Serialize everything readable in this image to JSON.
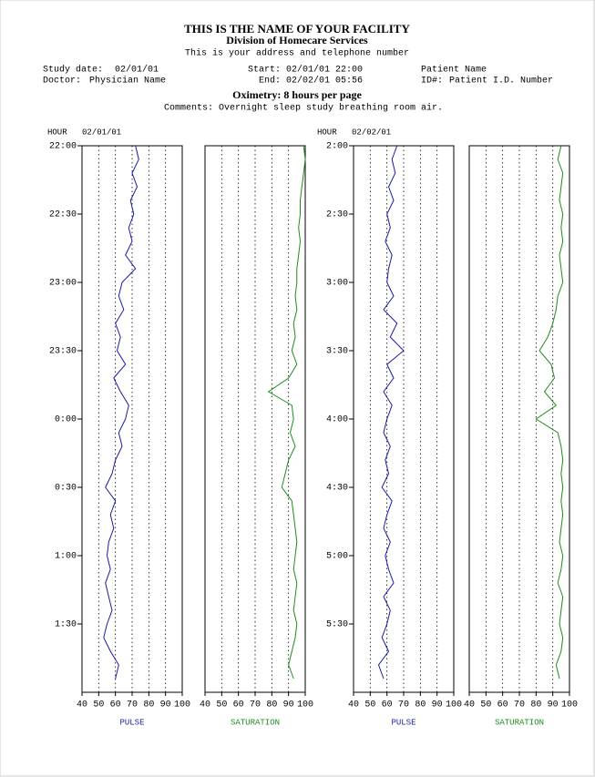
{
  "header": {
    "facility": "THIS IS THE NAME OF YOUR FACILITY",
    "division": "Division of Homecare Services",
    "address": "This is your address and telephone number",
    "study_date_label": "Study date:",
    "study_date": "02/01/01",
    "start_label": "Start:",
    "start": "02/01/01 22:00",
    "patient_name": "Patient Name",
    "doctor_label": "Doctor:",
    "doctor": "Physician Name",
    "end_label": "End:",
    "end": "02/02/01 05:56",
    "id_label": "ID#:",
    "id": "Patient I.D. Number",
    "report_title": "Oximetry: 8 hours per page",
    "comments_label": "Comments:",
    "comments": "Overnight sleep study breathing room air."
  },
  "chart_data": [
    {
      "type": "line",
      "y_label": "HOUR",
      "date": "02/01/01",
      "ylim": [
        22,
        26
      ],
      "yticks": [
        {
          "value": 22,
          "label": "22:00"
        },
        {
          "value": 22.5,
          "label": "22:30"
        },
        {
          "value": 23,
          "label": "23:00"
        },
        {
          "value": 23.5,
          "label": "23:30"
        },
        {
          "value": 24,
          "label": "0:00"
        },
        {
          "value": 24.5,
          "label": "0:30"
        },
        {
          "value": 25,
          "label": "1:00"
        },
        {
          "value": 25.5,
          "label": "1:30"
        }
      ],
      "xlim": [
        40,
        100
      ],
      "xticks": [
        40,
        50,
        60,
        70,
        80,
        90,
        100
      ],
      "grid": true,
      "x": [
        22.0,
        22.1,
        22.2,
        22.3,
        22.4,
        22.5,
        22.6,
        22.7,
        22.8,
        22.9,
        23.0,
        23.1,
        23.2,
        23.3,
        23.4,
        23.5,
        23.6,
        23.7,
        23.8,
        23.9,
        24.0,
        24.1,
        24.2,
        24.3,
        24.4,
        24.5,
        24.6,
        24.7,
        24.8,
        24.9,
        25.0,
        25.1,
        25.2,
        25.3,
        25.4,
        25.5,
        25.6,
        25.7,
        25.8,
        25.9
      ],
      "series": [
        {
          "name": "PULSE",
          "color": "#1a1aa6",
          "values": [
            72,
            74,
            70,
            73,
            69,
            71,
            68,
            70,
            66,
            72,
            64,
            62,
            65,
            60,
            63,
            61,
            66,
            59,
            63,
            68,
            66,
            62,
            64,
            60,
            58,
            54,
            60,
            57,
            59,
            56,
            55,
            57,
            54,
            56,
            58,
            55,
            53,
            57,
            62,
            60
          ]
        },
        {
          "name": "SATURATION",
          "color": "#1e8c1e",
          "values": [
            99,
            100,
            99,
            98,
            97,
            97,
            96,
            97,
            96,
            95,
            95,
            94,
            95,
            93,
            94,
            92,
            95,
            90,
            78,
            92,
            93,
            91,
            94,
            90,
            88,
            86,
            92,
            93,
            94,
            95,
            94,
            93,
            95,
            94,
            93,
            95,
            94,
            92,
            90,
            93
          ]
        }
      ]
    },
    {
      "type": "line",
      "y_label": "HOUR",
      "date": "02/02/01",
      "ylim": [
        2,
        6
      ],
      "yticks": [
        {
          "value": 2,
          "label": "2:00"
        },
        {
          "value": 2.5,
          "label": "2:30"
        },
        {
          "value": 3,
          "label": "3:00"
        },
        {
          "value": 3.5,
          "label": "3:30"
        },
        {
          "value": 4,
          "label": "4:00"
        },
        {
          "value": 4.5,
          "label": "4:30"
        },
        {
          "value": 5,
          "label": "5:00"
        },
        {
          "value": 5.5,
          "label": "5:30"
        }
      ],
      "xlim": [
        40,
        100
      ],
      "xticks": [
        40,
        50,
        60,
        70,
        80,
        90,
        100
      ],
      "grid": true,
      "x": [
        2.0,
        2.1,
        2.2,
        2.3,
        2.4,
        2.5,
        2.6,
        2.7,
        2.8,
        2.9,
        3.0,
        3.1,
        3.2,
        3.3,
        3.4,
        3.5,
        3.6,
        3.7,
        3.8,
        3.9,
        4.0,
        4.1,
        4.2,
        4.3,
        4.4,
        4.5,
        4.6,
        4.7,
        4.8,
        4.9,
        5.0,
        5.1,
        5.2,
        5.3,
        5.4,
        5.5,
        5.6,
        5.7,
        5.8,
        5.9
      ],
      "series": [
        {
          "name": "PULSE",
          "color": "#1a1aa6",
          "values": [
            66,
            63,
            65,
            61,
            64,
            60,
            62,
            59,
            63,
            61,
            60,
            64,
            58,
            66,
            62,
            70,
            60,
            64,
            58,
            63,
            60,
            58,
            62,
            59,
            61,
            57,
            63,
            60,
            58,
            62,
            59,
            61,
            64,
            58,
            62,
            60,
            57,
            61,
            55,
            58
          ]
        },
        {
          "name": "SATURATION",
          "color": "#1e8c1e",
          "values": [
            95,
            93,
            96,
            95,
            94,
            96,
            95,
            96,
            94,
            95,
            96,
            93,
            92,
            90,
            87,
            82,
            89,
            91,
            85,
            92,
            80,
            93,
            95,
            96,
            95,
            96,
            95,
            96,
            95,
            94,
            96,
            95,
            93,
            96,
            95,
            94,
            96,
            95,
            92,
            94
          ]
        }
      ]
    }
  ]
}
